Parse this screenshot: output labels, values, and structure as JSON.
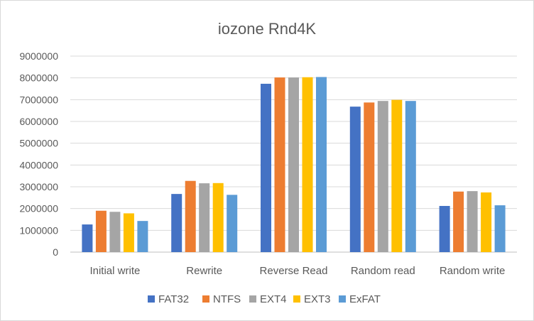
{
  "chart_data": {
    "type": "bar",
    "title": "iozone Rnd4K",
    "categories": [
      "Initial write",
      "Rewrite",
      "Reverse Read",
      "Random read",
      "Random write"
    ],
    "series": [
      {
        "name": "FAT32",
        "color": "#4472C4",
        "values": [
          1270000,
          2670000,
          7730000,
          6680000,
          2120000
        ]
      },
      {
        "name": "NTFS",
        "color": "#ED7D31",
        "values": [
          1900000,
          3270000,
          8020000,
          6870000,
          2780000
        ]
      },
      {
        "name": "EXT4",
        "color": "#A5A5A5",
        "values": [
          1850000,
          3160000,
          8020000,
          6940000,
          2800000
        ]
      },
      {
        "name": "EXT3",
        "color": "#FFC000",
        "values": [
          1780000,
          3170000,
          8030000,
          6990000,
          2740000
        ]
      },
      {
        "name": "ExFAT",
        "color": "#5B9BD5",
        "values": [
          1430000,
          2630000,
          8040000,
          6940000,
          2150000
        ]
      }
    ],
    "yticks": [
      "0",
      "1000000",
      "2000000",
      "3000000",
      "4000000",
      "5000000",
      "6000000",
      "7000000",
      "8000000",
      "9000000"
    ],
    "ylim": [
      0,
      9000000
    ],
    "grid": true,
    "legend": "bottom"
  }
}
